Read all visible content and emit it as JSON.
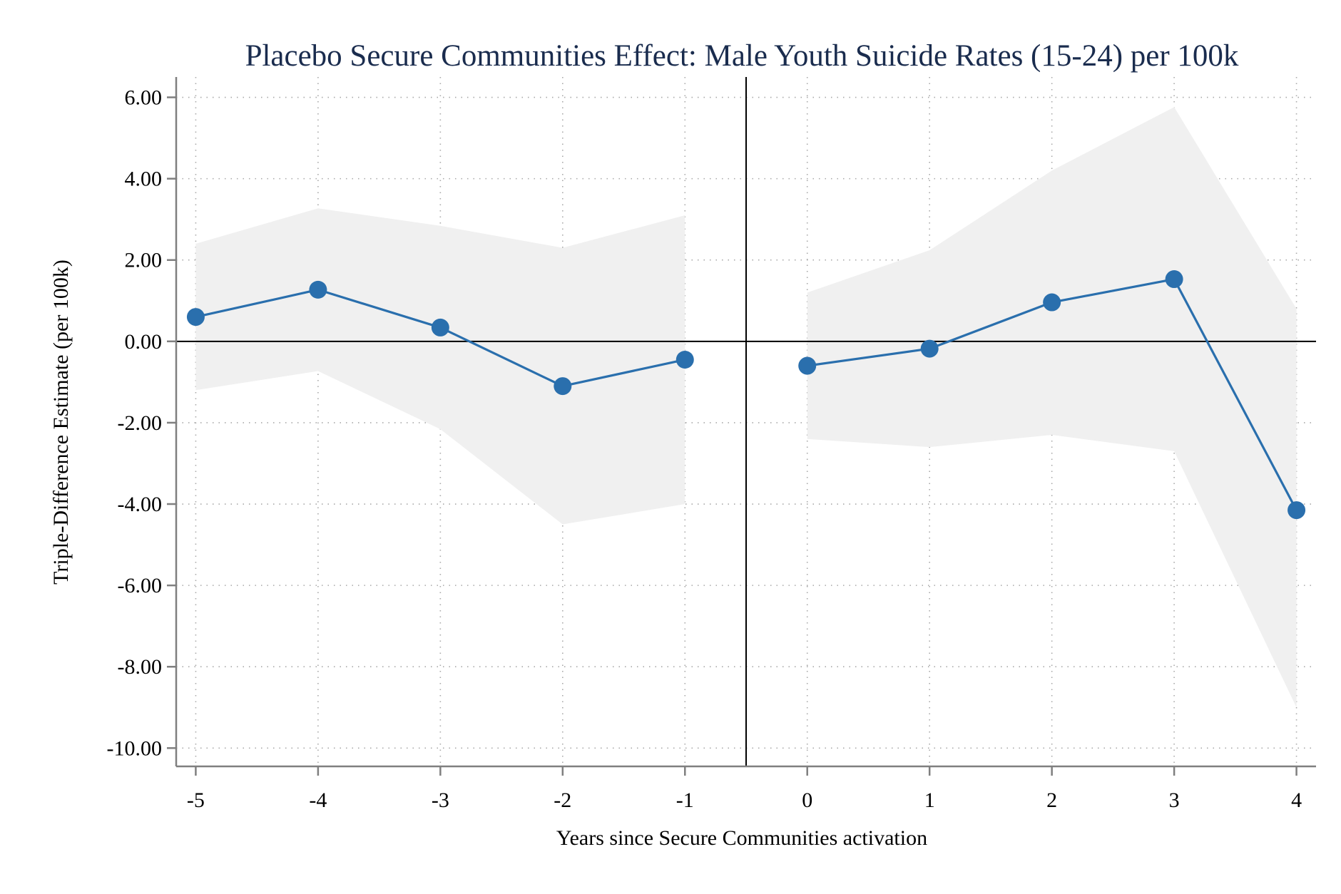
{
  "chart_data": {
    "type": "line",
    "title": "Placebo Secure Communities Effect: Male Youth Suicide Rates (15-24) per 100k",
    "xlabel": "Years since Secure Communities activation",
    "ylabel": "Triple-Difference Estimate (per 100k)",
    "x_ticks": [
      -5,
      -4,
      -3,
      -2,
      -1,
      0,
      1,
      2,
      3,
      4
    ],
    "x_tick_labels": [
      "-5",
      "-4",
      "-3",
      "-2",
      "-1",
      "0",
      "1",
      "2",
      "3",
      "4"
    ],
    "y_ticks": [
      6,
      4,
      2,
      0,
      -2,
      -4,
      -6,
      -8,
      -10
    ],
    "y_tick_labels": [
      "6.00",
      "4.00",
      "2.00",
      "0.00",
      "-2.00",
      "-4.00",
      "-6.00",
      "-8.00",
      "-10.00"
    ],
    "xlim": [
      -5.16,
      4.16
    ],
    "ylim": [
      -10.45,
      6.5
    ],
    "reference_lines": {
      "y": 0,
      "x": -0.5
    },
    "grid": true,
    "series": [
      {
        "x": [
          -5,
          -4,
          -3,
          -2,
          -1
        ],
        "values": [
          0.6,
          1.27,
          0.34,
          -1.1,
          -0.45
        ],
        "ci_lower": [
          -1.2,
          -0.73,
          -2.16,
          -4.5,
          -4.0
        ],
        "ci_upper": [
          2.4,
          3.27,
          2.84,
          2.3,
          3.1
        ]
      },
      {
        "x": [
          0,
          1,
          2,
          3,
          4
        ],
        "values": [
          -0.6,
          -0.18,
          0.96,
          1.53,
          -4.15
        ],
        "ci_lower": [
          -2.4,
          -2.6,
          -2.3,
          -2.7,
          -9.0
        ],
        "ci_upper": [
          1.2,
          2.24,
          4.2,
          5.76,
          0.8
        ]
      }
    ],
    "colors": {
      "title": "#1a2c4e",
      "line": "#2a6fad",
      "marker": "#2a6fad",
      "ci_band": "#f0f0f0",
      "axis": "#7f7f7f",
      "grid": "#a8a8a8",
      "reference": "#000000",
      "text": "#000000"
    }
  }
}
